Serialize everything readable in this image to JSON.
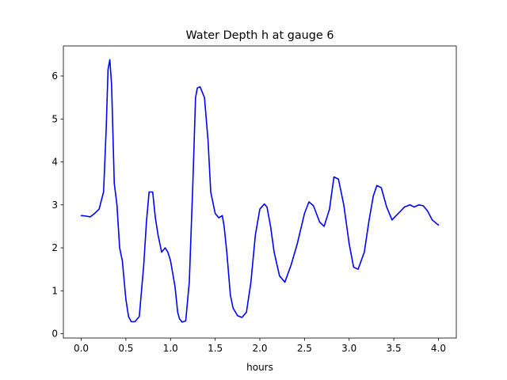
{
  "chart_data": {
    "type": "line",
    "title": "Water Depth h at gauge 6",
    "xlabel": "hours",
    "ylabel": "",
    "xlim": [
      -0.2,
      4.2
    ],
    "ylim": [
      -0.1,
      6.7
    ],
    "xticks": [
      0.0,
      0.5,
      1.0,
      1.5,
      2.0,
      2.5,
      3.0,
      3.5,
      4.0
    ],
    "xtick_labels": [
      "0.0",
      "0.5",
      "1.0",
      "1.5",
      "2.0",
      "2.5",
      "3.0",
      "3.5",
      "4.0"
    ],
    "yticks": [
      0,
      1,
      2,
      3,
      4,
      5,
      6
    ],
    "ytick_labels": [
      "0",
      "1",
      "2",
      "3",
      "4",
      "5",
      "6"
    ],
    "grid": false,
    "series": [
      {
        "color": "#0000ff",
        "x": [
          0.0,
          0.05,
          0.1,
          0.15,
          0.2,
          0.25,
          0.28,
          0.3,
          0.32,
          0.34,
          0.37,
          0.4,
          0.43,
          0.46,
          0.5,
          0.53,
          0.56,
          0.6,
          0.65,
          0.7,
          0.73,
          0.76,
          0.8,
          0.83,
          0.86,
          0.9,
          0.94,
          0.97,
          1.0,
          1.05,
          1.08,
          1.1,
          1.13,
          1.17,
          1.21,
          1.25,
          1.28,
          1.3,
          1.33,
          1.38,
          1.42,
          1.45,
          1.5,
          1.54,
          1.58,
          1.6,
          1.63,
          1.67,
          1.7,
          1.75,
          1.8,
          1.85,
          1.9,
          1.95,
          2.0,
          2.05,
          2.08,
          2.12,
          2.16,
          2.22,
          2.28,
          2.35,
          2.42,
          2.5,
          2.55,
          2.6,
          2.67,
          2.72,
          2.78,
          2.83,
          2.88,
          2.94,
          3.0,
          3.05,
          3.1,
          3.17,
          3.22,
          3.27,
          3.31,
          3.36,
          3.42,
          3.48,
          3.55,
          3.62,
          3.68,
          3.73,
          3.78,
          3.83,
          3.88,
          3.93,
          3.97,
          4.0
        ],
        "y": [
          2.75,
          2.74,
          2.72,
          2.8,
          2.9,
          3.3,
          4.8,
          6.15,
          6.38,
          5.8,
          3.5,
          3.0,
          2.0,
          1.7,
          0.8,
          0.4,
          0.28,
          0.28,
          0.4,
          1.6,
          2.6,
          3.3,
          3.3,
          2.7,
          2.3,
          1.9,
          2.0,
          1.9,
          1.7,
          1.1,
          0.5,
          0.35,
          0.27,
          0.3,
          1.2,
          3.5,
          5.5,
          5.72,
          5.75,
          5.5,
          4.5,
          3.3,
          2.8,
          2.7,
          2.75,
          2.5,
          1.9,
          0.9,
          0.6,
          0.42,
          0.38,
          0.5,
          1.2,
          2.3,
          2.9,
          3.02,
          2.95,
          2.5,
          1.9,
          1.35,
          1.2,
          1.6,
          2.1,
          2.8,
          3.07,
          2.98,
          2.6,
          2.5,
          2.9,
          3.65,
          3.6,
          3.0,
          2.1,
          1.55,
          1.5,
          1.9,
          2.6,
          3.2,
          3.45,
          3.4,
          2.95,
          2.65,
          2.8,
          2.95,
          3.0,
          2.95,
          3.0,
          2.98,
          2.85,
          2.65,
          2.58,
          2.53
        ]
      }
    ]
  }
}
